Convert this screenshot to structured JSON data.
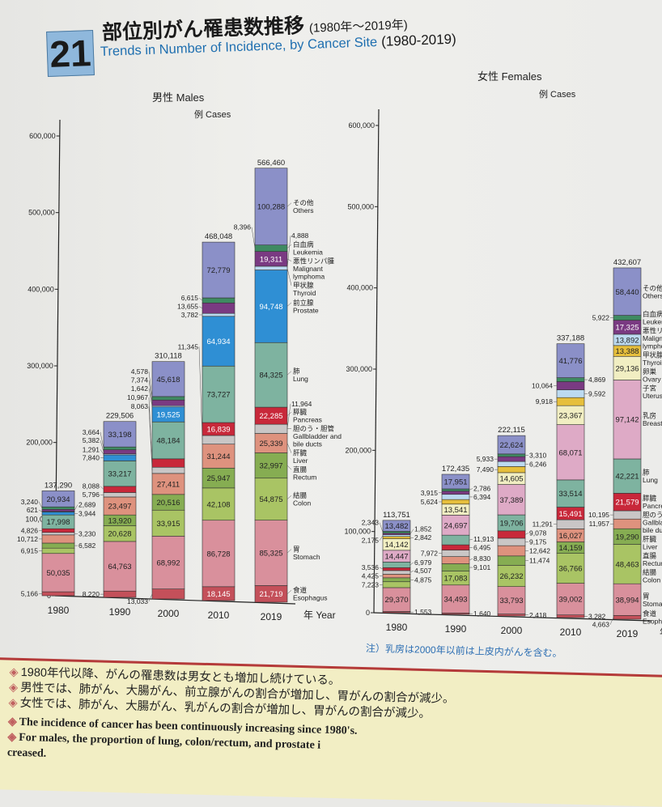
{
  "header": {
    "number": "21",
    "title_jp": "部位別がん罹患数推移",
    "title_jp_years": "(1980年〜2019年)",
    "title_en_blue": "Trends in Number of Incidence, by Cancer Site",
    "title_en_years": "(1980-2019)"
  },
  "males": {
    "label": "男性  Males",
    "unit": "例  Cases"
  },
  "females": {
    "label": "女性  Females",
    "unit": "例  Cases"
  },
  "x_axis_unit": "年 Year",
  "footnote": "注）乳房は2000年以前は上皮内がんを含む。",
  "summary": [
    "1980年代以降、がんの罹患数は男女とも増加し続けている。",
    "男性では、肺がん、大腸がん、前立腺がんの割合が増加し、胃がんの割合が減少。",
    "女性では、肺がん、大腸がん、乳がんの割合が増加し、胃がんの割合が減少。",
    "The incidence of cancer has been continuously increasing since 1980's.",
    "For males, the proportion of lung, colon/rectum, and prostate i",
    "creased."
  ],
  "chart_data": [
    {
      "type": "bar",
      "stacked": true,
      "title": "男性 Males",
      "ylabel": "例 Cases",
      "xlabel": "年 Year",
      "ylim": [
        0,
        600000
      ],
      "yticks": [
        0,
        100000,
        200000,
        300000,
        400000,
        500000,
        600000
      ],
      "ytick_labels": [
        "0",
        "100,000",
        "200,000",
        "300,000",
        "400,000",
        "500,000",
        "600,000"
      ],
      "categories": [
        "1980",
        "1990",
        "2000",
        "2010",
        "2019"
      ],
      "totals": [
        137290,
        229506,
        310118,
        468048,
        566460
      ],
      "series": [
        {
          "name_jp": "食道",
          "name": "Esophagus",
          "color": "#c4505a",
          "values": [
            5166,
            8220,
            13033,
            18145,
            21719
          ]
        },
        {
          "name_jp": "胃",
          "name": "Stomach",
          "color": "#d9909c",
          "values": [
            50035,
            64763,
            68992,
            86728,
            85325
          ]
        },
        {
          "name_jp": "結腸",
          "name": "Colon",
          "color": "#a9c464",
          "values": [
            6915,
            20628,
            33915,
            42108,
            54875
          ]
        },
        {
          "name_jp": "直腸",
          "name": "Rectum",
          "color": "#86ad52",
          "values": [
            6582,
            13920,
            20516,
            25947,
            32997
          ]
        },
        {
          "name_jp": "肝臓",
          "name": "Liver",
          "color": "#de927e",
          "values": [
            10712,
            23497,
            27411,
            31244,
            25339
          ]
        },
        {
          "name_jp": "胆のう・胆管",
          "name": "Gallbladder and bile ducts",
          "color": "#c9c6c6",
          "values": [
            3230,
            5796,
            8063,
            11345,
            11964
          ]
        },
        {
          "name_jp": "膵臓",
          "name": "Pancreas",
          "color": "#c8283a",
          "values": [
            4826,
            8088,
            10967,
            16839,
            22285
          ]
        },
        {
          "name_jp": "肺",
          "name": "Lung",
          "color": "#7eb3a0",
          "values": [
            17998,
            33217,
            48184,
            73727,
            84325
          ]
        },
        {
          "name_jp": "前立腺",
          "name": "Prostate",
          "color": "#2f8fd4",
          "values": [
            3944,
            7840,
            19525,
            64934,
            94748
          ]
        },
        {
          "name_jp": "甲状腺",
          "name": "Thyroid",
          "color": "#bcdaf0",
          "values": [
            621,
            1291,
            1642,
            3782,
            4888
          ]
        },
        {
          "name_jp": "悪性リンパ腫",
          "name": "Malignant lymphoma",
          "color": "#7a3a82",
          "values": [
            2689,
            5382,
            7374,
            13655,
            19311
          ]
        },
        {
          "name_jp": "白血病",
          "name": "Leukemia",
          "color": "#3f8a62",
          "values": [
            3240,
            3664,
            4578,
            6615,
            8396
          ]
        },
        {
          "name_jp": "その他",
          "name": "Others",
          "color": "#8b90c8",
          "values": [
            20934,
            33198,
            45618,
            72779,
            100288
          ]
        }
      ]
    },
    {
      "type": "bar",
      "stacked": true,
      "title": "女性 Females",
      "ylabel": "例 Cases",
      "xlabel": "年 Year",
      "ylim": [
        0,
        600000
      ],
      "yticks": [
        0,
        100000,
        200000,
        300000,
        400000,
        500000,
        600000
      ],
      "ytick_labels": [
        "0",
        "100,000",
        "200,000",
        "300,000",
        "400,000",
        "500,000",
        "600,000"
      ],
      "categories": [
        "1980",
        "1990",
        "2000",
        "2010",
        "2019"
      ],
      "totals": [
        113751,
        172435,
        222115,
        337188,
        432607
      ],
      "series": [
        {
          "name_jp": "食道",
          "name": "Esophagus",
          "color": "#c4505a",
          "values": [
            1553,
            1640,
            2418,
            3282,
            4663
          ]
        },
        {
          "name_jp": "胃",
          "name": "Stomach",
          "color": "#d9909c",
          "values": [
            29370,
            34493,
            33793,
            39002,
            38994
          ]
        },
        {
          "name_jp": "結腸",
          "name": "Colon",
          "color": "#a9c464",
          "values": [
            7223,
            17083,
            26232,
            36766,
            48463
          ]
        },
        {
          "name_jp": "直腸",
          "name": "Rectum",
          "color": "#86ad52",
          "values": [
            4875,
            9101,
            11474,
            14159,
            19290
          ]
        },
        {
          "name_jp": "肝臓",
          "name": "Liver",
          "color": "#de927e",
          "values": [
            4425,
            8830,
            12642,
            16027,
            11957
          ]
        },
        {
          "name_jp": "胆のう・胆管",
          "name": "Gallbladder and bile ducts",
          "color": "#c9c6c6",
          "values": [
            4507,
            7972,
            9175,
            11291,
            10195
          ]
        },
        {
          "name_jp": "膵臓",
          "name": "Pancreas",
          "color": "#c8283a",
          "values": [
            3536,
            6495,
            9078,
            15491,
            21579
          ]
        },
        {
          "name_jp": "肺",
          "name": "Lung",
          "color": "#7eb3a0",
          "values": [
            6979,
            11913,
            19706,
            33514,
            42221
          ]
        },
        {
          "name_jp": "乳房",
          "name": "Breast",
          "color": "#deaac6",
          "values": [
            14447,
            24697,
            37389,
            68071,
            97142
          ]
        },
        {
          "name_jp": "子宮",
          "name": "Uterus",
          "color": "#f1eec2",
          "values": [
            14142,
            13541,
            14605,
            23367,
            29136
          ]
        },
        {
          "name_jp": "卵巣",
          "name": "Ovary",
          "color": "#e6bf3c",
          "values": [
            2842,
            5624,
            7490,
            9918,
            13388
          ]
        },
        {
          "name_jp": "甲状腺",
          "name": "Thyroid",
          "color": "#bcdaf0",
          "values": [
            2175,
            6394,
            6246,
            9592,
            13892
          ]
        },
        {
          "name_jp": "悪性リンパ腫",
          "name": "Malignant lymphoma",
          "color": "#7a3a82",
          "values": [
            1852,
            3915,
            5933,
            10064,
            17325
          ]
        },
        {
          "name_jp": "白血病",
          "name": "Leukemia",
          "color": "#3f8a62",
          "values": [
            2343,
            2786,
            3310,
            4869,
            5922
          ]
        },
        {
          "name_jp": "その他",
          "name": "Others",
          "color": "#8b90c8",
          "values": [
            13482,
            17951,
            22624,
            41776,
            58440
          ]
        }
      ]
    }
  ]
}
